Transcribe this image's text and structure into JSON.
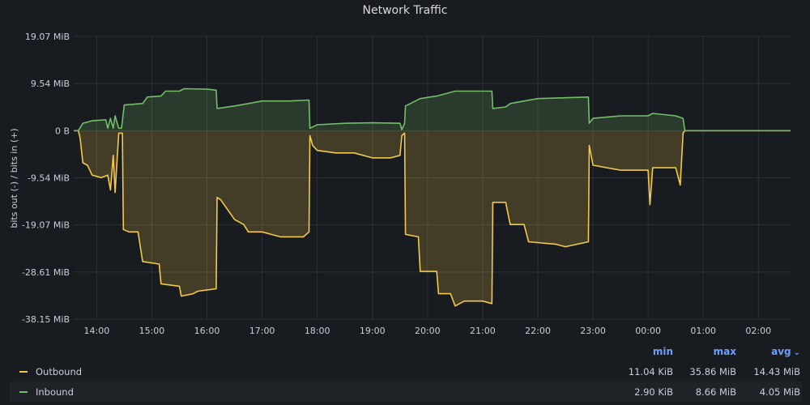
{
  "panel": {
    "title": "Network Traffic"
  },
  "chart_data": {
    "type": "area",
    "title": "Network Traffic",
    "ylabel": "bits out (-) / bits in (+)",
    "y_unit": "MiB",
    "ylim": [
      -38.15,
      19.07
    ],
    "yticks": [
      19.07,
      9.54,
      0,
      -9.54,
      -19.07,
      -28.61,
      -38.15
    ],
    "ytick_labels": [
      "19.07 MiB",
      "9.54 MiB",
      "0 B",
      "-9.54 MiB",
      "-19.07 MiB",
      "-28.61 MiB",
      "-38.15 MiB"
    ],
    "xlim": [
      "13:35",
      "02:35"
    ],
    "xticks": [
      "14:00",
      "15:00",
      "16:00",
      "17:00",
      "18:00",
      "19:00",
      "20:00",
      "21:00",
      "22:00",
      "23:00",
      "00:00",
      "01:00",
      "02:00"
    ],
    "grid": true,
    "legend_position": "bottom",
    "series": [
      {
        "name": "Outbound",
        "color": "#f2c94c",
        "points": [
          [
            "13:35",
            0
          ],
          [
            "13:40",
            0
          ],
          [
            "13:42",
            -1.5
          ],
          [
            "13:45",
            -6.5
          ],
          [
            "13:50",
            -7.0
          ],
          [
            "13:55",
            -9.0
          ],
          [
            "14:05",
            -9.5
          ],
          [
            "14:12",
            -9.0
          ],
          [
            "14:15",
            -12.0
          ],
          [
            "14:18",
            -5.0
          ],
          [
            "14:20",
            -12.5
          ],
          [
            "14:24",
            -0.5
          ],
          [
            "14:28",
            -0.5
          ],
          [
            "14:29",
            -20.0
          ],
          [
            "14:35",
            -20.5
          ],
          [
            "14:45",
            -20.5
          ],
          [
            "14:50",
            -26.5
          ],
          [
            "15:08",
            -27.0
          ],
          [
            "15:10",
            -31.0
          ],
          [
            "15:30",
            -31.5
          ],
          [
            "15:32",
            -33.5
          ],
          [
            "15:45",
            -33.0
          ],
          [
            "15:50",
            -32.5
          ],
          [
            "16:10",
            -32.0
          ],
          [
            "16:11",
            -13.5
          ],
          [
            "16:15",
            -14.0
          ],
          [
            "16:30",
            -18.0
          ],
          [
            "16:40",
            -19.0
          ],
          [
            "16:45",
            -20.5
          ],
          [
            "17:00",
            -20.5
          ],
          [
            "17:10",
            -21.0
          ],
          [
            "17:20",
            -21.5
          ],
          [
            "17:45",
            -21.5
          ],
          [
            "17:51",
            -20.5
          ],
          [
            "17:52",
            -1.0
          ],
          [
            "17:55",
            -3.0
          ],
          [
            "18:00",
            -4.0
          ],
          [
            "18:20",
            -4.5
          ],
          [
            "18:40",
            -4.5
          ],
          [
            "19:00",
            -5.5
          ],
          [
            "19:20",
            -5.5
          ],
          [
            "19:30",
            -5.0
          ],
          [
            "19:32",
            -1.0
          ],
          [
            "19:35",
            -0.5
          ],
          [
            "19:36",
            -21.0
          ],
          [
            "19:50",
            -21.5
          ],
          [
            "19:52",
            -28.5
          ],
          [
            "20:10",
            -28.5
          ],
          [
            "20:12",
            -33.0
          ],
          [
            "20:25",
            -33.0
          ],
          [
            "20:30",
            -35.5
          ],
          [
            "20:40",
            -34.5
          ],
          [
            "21:00",
            -34.5
          ],
          [
            "21:10",
            -35.0
          ],
          [
            "21:11",
            -14.5
          ],
          [
            "21:25",
            -14.5
          ],
          [
            "21:30",
            -19.0
          ],
          [
            "21:45",
            -19.0
          ],
          [
            "21:50",
            -22.5
          ],
          [
            "22:20",
            -23.0
          ],
          [
            "22:30",
            -23.5
          ],
          [
            "22:55",
            -22.5
          ],
          [
            "22:56",
            -3.0
          ],
          [
            "23:00",
            -7.0
          ],
          [
            "23:30",
            -8.0
          ],
          [
            "23:50",
            -8.0
          ],
          [
            "00:00",
            -8.0
          ],
          [
            "00:02",
            -15.0
          ],
          [
            "00:05",
            -7.5
          ],
          [
            "00:30",
            -7.5
          ],
          [
            "00:35",
            -11.0
          ],
          [
            "00:38",
            -0.5
          ],
          [
            "00:40",
            0
          ],
          [
            "02:35",
            0
          ]
        ]
      },
      {
        "name": "Inbound",
        "color": "#73bf69",
        "points": [
          [
            "13:35",
            0
          ],
          [
            "13:40",
            0
          ],
          [
            "13:45",
            1.5
          ],
          [
            "13:55",
            2.0
          ],
          [
            "14:10",
            2.2
          ],
          [
            "14:12",
            0.5
          ],
          [
            "14:15",
            2.5
          ],
          [
            "14:18",
            0.5
          ],
          [
            "14:20",
            3.0
          ],
          [
            "14:24",
            0.5
          ],
          [
            "14:27",
            0.5
          ],
          [
            "14:30",
            5.2
          ],
          [
            "14:50",
            5.5
          ],
          [
            "14:55",
            6.8
          ],
          [
            "15:10",
            7.0
          ],
          [
            "15:15",
            8.0
          ],
          [
            "15:30",
            8.0
          ],
          [
            "15:35",
            8.5
          ],
          [
            "16:00",
            8.4
          ],
          [
            "16:10",
            8.2
          ],
          [
            "16:11",
            4.5
          ],
          [
            "16:30",
            5.0
          ],
          [
            "16:45",
            5.5
          ],
          [
            "17:00",
            6.0
          ],
          [
            "17:30",
            6.0
          ],
          [
            "17:51",
            6.2
          ],
          [
            "17:52",
            0.5
          ],
          [
            "18:00",
            1.2
          ],
          [
            "18:30",
            1.5
          ],
          [
            "19:00",
            1.6
          ],
          [
            "19:30",
            1.5
          ],
          [
            "19:32",
            0.2
          ],
          [
            "19:35",
            1.5
          ],
          [
            "19:36",
            5.0
          ],
          [
            "19:52",
            6.5
          ],
          [
            "20:10",
            7.0
          ],
          [
            "20:30",
            8.0
          ],
          [
            "21:10",
            8.0
          ],
          [
            "21:11",
            4.5
          ],
          [
            "21:25",
            4.8
          ],
          [
            "21:30",
            5.5
          ],
          [
            "21:45",
            6.0
          ],
          [
            "22:00",
            6.5
          ],
          [
            "22:55",
            6.8
          ],
          [
            "22:56",
            1.5
          ],
          [
            "23:00",
            2.5
          ],
          [
            "23:30",
            3.0
          ],
          [
            "00:00",
            3.0
          ],
          [
            "00:05",
            3.5
          ],
          [
            "00:30",
            3.0
          ],
          [
            "00:38",
            2.5
          ],
          [
            "00:40",
            0
          ],
          [
            "02:35",
            0
          ]
        ]
      }
    ]
  },
  "legend": {
    "columns": [
      "min",
      "max",
      "avg"
    ],
    "sort_indicator": "⌄",
    "rows": [
      {
        "name": "Outbound",
        "color": "#f2c94c",
        "min": "11.04 KiB",
        "max": "35.86 MiB",
        "avg": "14.43 MiB"
      },
      {
        "name": "Inbound",
        "color": "#73bf69",
        "min": "2.90 KiB",
        "max": "8.66 MiB",
        "avg": "4.05 MiB"
      }
    ]
  }
}
